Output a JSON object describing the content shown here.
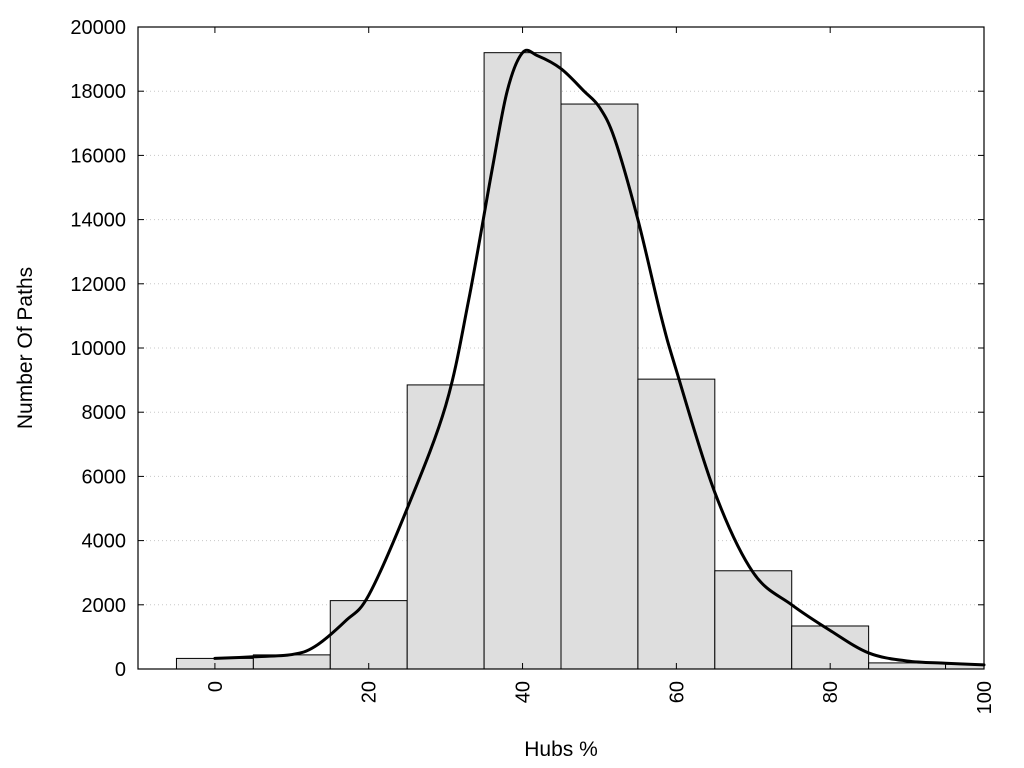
{
  "chart_data": {
    "type": "bar",
    "xlabel": "Hubs %",
    "ylabel": "Number Of Paths",
    "xlim": [
      -10,
      100
    ],
    "ylim": [
      0,
      20000
    ],
    "x_ticks": [
      0,
      20,
      40,
      60,
      80,
      100
    ],
    "y_ticks": [
      0,
      2000,
      4000,
      6000,
      8000,
      10000,
      12000,
      14000,
      16000,
      18000,
      20000
    ],
    "grid": "horizontal dotted",
    "bin_width": 10,
    "bin_centers": [
      0,
      10,
      20,
      30,
      40,
      50,
      60,
      70,
      80,
      90,
      100
    ],
    "values": [
      330,
      440,
      2130,
      8850,
      19200,
      17600,
      9030,
      3060,
      1340,
      190,
      150
    ],
    "density_curve": {
      "x": [
        0,
        5,
        10,
        13,
        17,
        20,
        25,
        30,
        33,
        36,
        38,
        40,
        42,
        45,
        48,
        50,
        52,
        55,
        58,
        60,
        65,
        70,
        75,
        80,
        85,
        90,
        95,
        100
      ],
      "y": [
        330,
        380,
        450,
        700,
        1500,
        2300,
        5000,
        8200,
        11500,
        15500,
        18000,
        19200,
        19100,
        18700,
        18000,
        17500,
        16500,
        14000,
        11000,
        9300,
        5500,
        3000,
        2000,
        1200,
        500,
        250,
        180,
        130
      ]
    },
    "colors": {
      "bar_fill": "#dedede",
      "bar_stroke": "#000000",
      "line": "#000000"
    }
  }
}
